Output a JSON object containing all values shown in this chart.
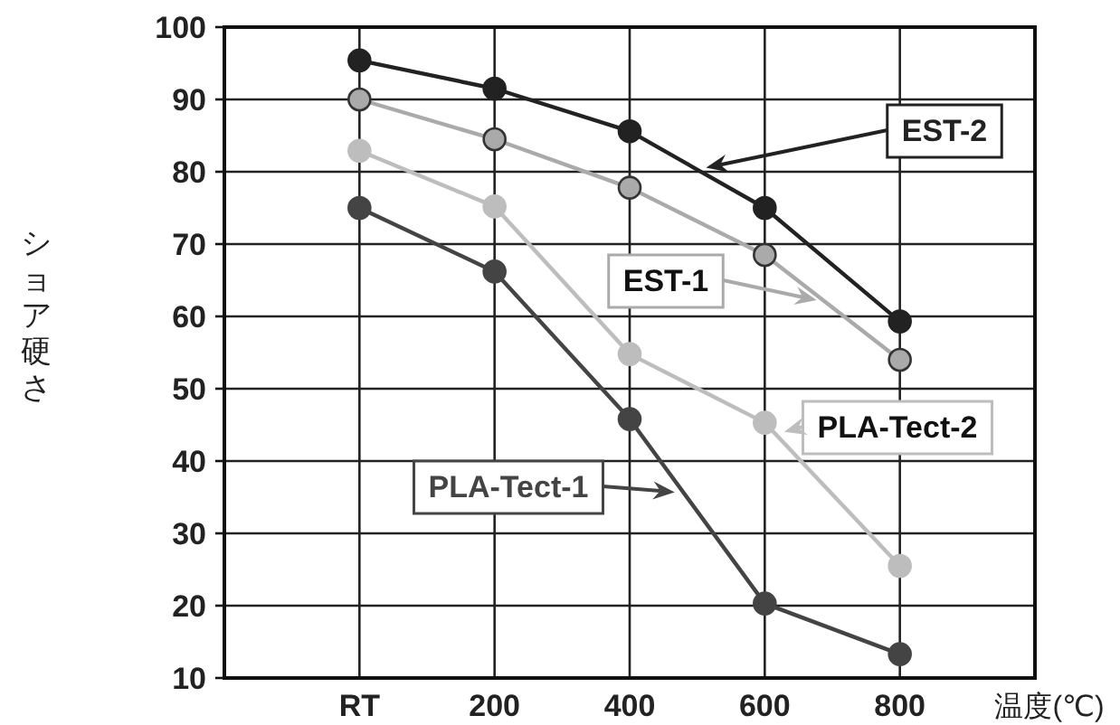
{
  "chart_data": {
    "type": "line",
    "xlabel": "温度(℃)",
    "ylabel": "ショア硬さ",
    "categories": [
      "RT",
      "200",
      "400",
      "600",
      "800"
    ],
    "ylim": [
      10,
      100
    ],
    "yticks": [
      10,
      20,
      30,
      40,
      50,
      60,
      70,
      80,
      90,
      100
    ],
    "grid": true,
    "marker": "circle",
    "line_style": "solid",
    "legend": "center",
    "series": [
      {
        "name": "EST-2",
        "color": "#222222",
        "values": [
          95.4,
          91.5,
          85.6,
          75,
          59.3
        ]
      },
      {
        "name": "EST-1",
        "color": "#aaaaaa",
        "values": [
          90,
          84.5,
          77.8,
          68.5,
          54
        ]
      },
      {
        "name": "PLA-Tect-2",
        "color": "#bdbdbd",
        "values": [
          82.9,
          75.2,
          54.8,
          45.3,
          25.5
        ]
      },
      {
        "name": "PLA-Tect-1",
        "color": "#444444",
        "values": [
          75,
          66.2,
          45.8,
          20.3,
          13.3
        ]
      }
    ]
  }
}
